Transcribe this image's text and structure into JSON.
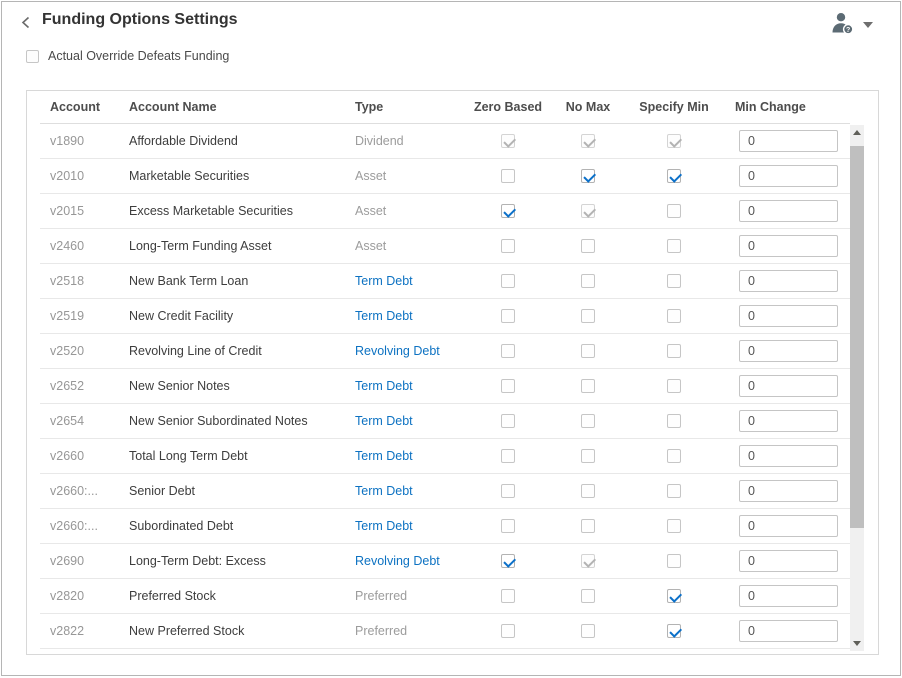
{
  "header": {
    "title": "Funding Options Settings",
    "back_icon": "chevron-left",
    "user_menu_icon": "user-help",
    "user_menu_caret": "caret-down"
  },
  "options": {
    "actual_override_label": "Actual Override Defeats Funding",
    "actual_override_checked": false
  },
  "colors": {
    "link_blue": "#0d72c2",
    "check_blue": "#0b70c9"
  },
  "table": {
    "columns": [
      "Account",
      "Account Name",
      "Type",
      "Zero Based",
      "No Max",
      "Specify Min",
      "Min Change"
    ],
    "rows": [
      {
        "account": "v1890",
        "name": "Affordable Dividend",
        "type": "Dividend",
        "type_link": false,
        "zero_based": "checked-disabled",
        "no_max": "checked-disabled",
        "specify_min": "checked-disabled",
        "min_change": "0"
      },
      {
        "account": "v2010",
        "name": "Marketable Securities",
        "type": "Asset",
        "type_link": false,
        "zero_based": "unchecked",
        "no_max": "checked",
        "specify_min": "checked",
        "min_change": "0"
      },
      {
        "account": "v2015",
        "name": "Excess Marketable Securities",
        "type": "Asset",
        "type_link": false,
        "zero_based": "checked",
        "no_max": "checked-disabled",
        "specify_min": "unchecked",
        "min_change": "0"
      },
      {
        "account": "v2460",
        "name": "Long-Term Funding Asset",
        "type": "Asset",
        "type_link": false,
        "zero_based": "unchecked",
        "no_max": "unchecked",
        "specify_min": "unchecked",
        "min_change": "0"
      },
      {
        "account": "v2518",
        "name": "New Bank Term Loan",
        "type": "Term Debt",
        "type_link": true,
        "zero_based": "unchecked",
        "no_max": "unchecked",
        "specify_min": "unchecked",
        "min_change": "0"
      },
      {
        "account": "v2519",
        "name": "New Credit Facility",
        "type": "Term Debt",
        "type_link": true,
        "zero_based": "unchecked",
        "no_max": "unchecked",
        "specify_min": "unchecked",
        "min_change": "0"
      },
      {
        "account": "v2520",
        "name": "Revolving Line of Credit",
        "type": "Revolving Debt",
        "type_link": true,
        "zero_based": "unchecked",
        "no_max": "unchecked",
        "specify_min": "unchecked",
        "min_change": "0"
      },
      {
        "account": "v2652",
        "name": "New Senior Notes",
        "type": "Term Debt",
        "type_link": true,
        "zero_based": "unchecked",
        "no_max": "unchecked",
        "specify_min": "unchecked",
        "min_change": "0"
      },
      {
        "account": "v2654",
        "name": "New Senior Subordinated Notes",
        "type": "Term Debt",
        "type_link": true,
        "zero_based": "unchecked",
        "no_max": "unchecked",
        "specify_min": "unchecked",
        "min_change": "0"
      },
      {
        "account": "v2660",
        "name": "Total Long Term Debt",
        "type": "Term Debt",
        "type_link": true,
        "zero_based": "unchecked",
        "no_max": "unchecked",
        "specify_min": "unchecked",
        "min_change": "0"
      },
      {
        "account": "v2660:...",
        "name": "Senior Debt",
        "type": "Term Debt",
        "type_link": true,
        "zero_based": "unchecked",
        "no_max": "unchecked",
        "specify_min": "unchecked",
        "min_change": "0"
      },
      {
        "account": "v2660:...",
        "name": "Subordinated Debt",
        "type": "Term Debt",
        "type_link": true,
        "zero_based": "unchecked",
        "no_max": "unchecked",
        "specify_min": "unchecked",
        "min_change": "0"
      },
      {
        "account": "v2690",
        "name": "Long-Term Debt: Excess",
        "type": "Revolving Debt",
        "type_link": true,
        "zero_based": "checked",
        "no_max": "checked-disabled",
        "specify_min": "unchecked",
        "min_change": "0"
      },
      {
        "account": "v2820",
        "name": "Preferred Stock",
        "type": "Preferred",
        "type_link": false,
        "zero_based": "unchecked",
        "no_max": "unchecked",
        "specify_min": "checked",
        "min_change": "0"
      },
      {
        "account": "v2822",
        "name": "New Preferred Stock",
        "type": "Preferred",
        "type_link": false,
        "zero_based": "unchecked",
        "no_max": "unchecked",
        "specify_min": "checked",
        "min_change": "0"
      }
    ]
  }
}
